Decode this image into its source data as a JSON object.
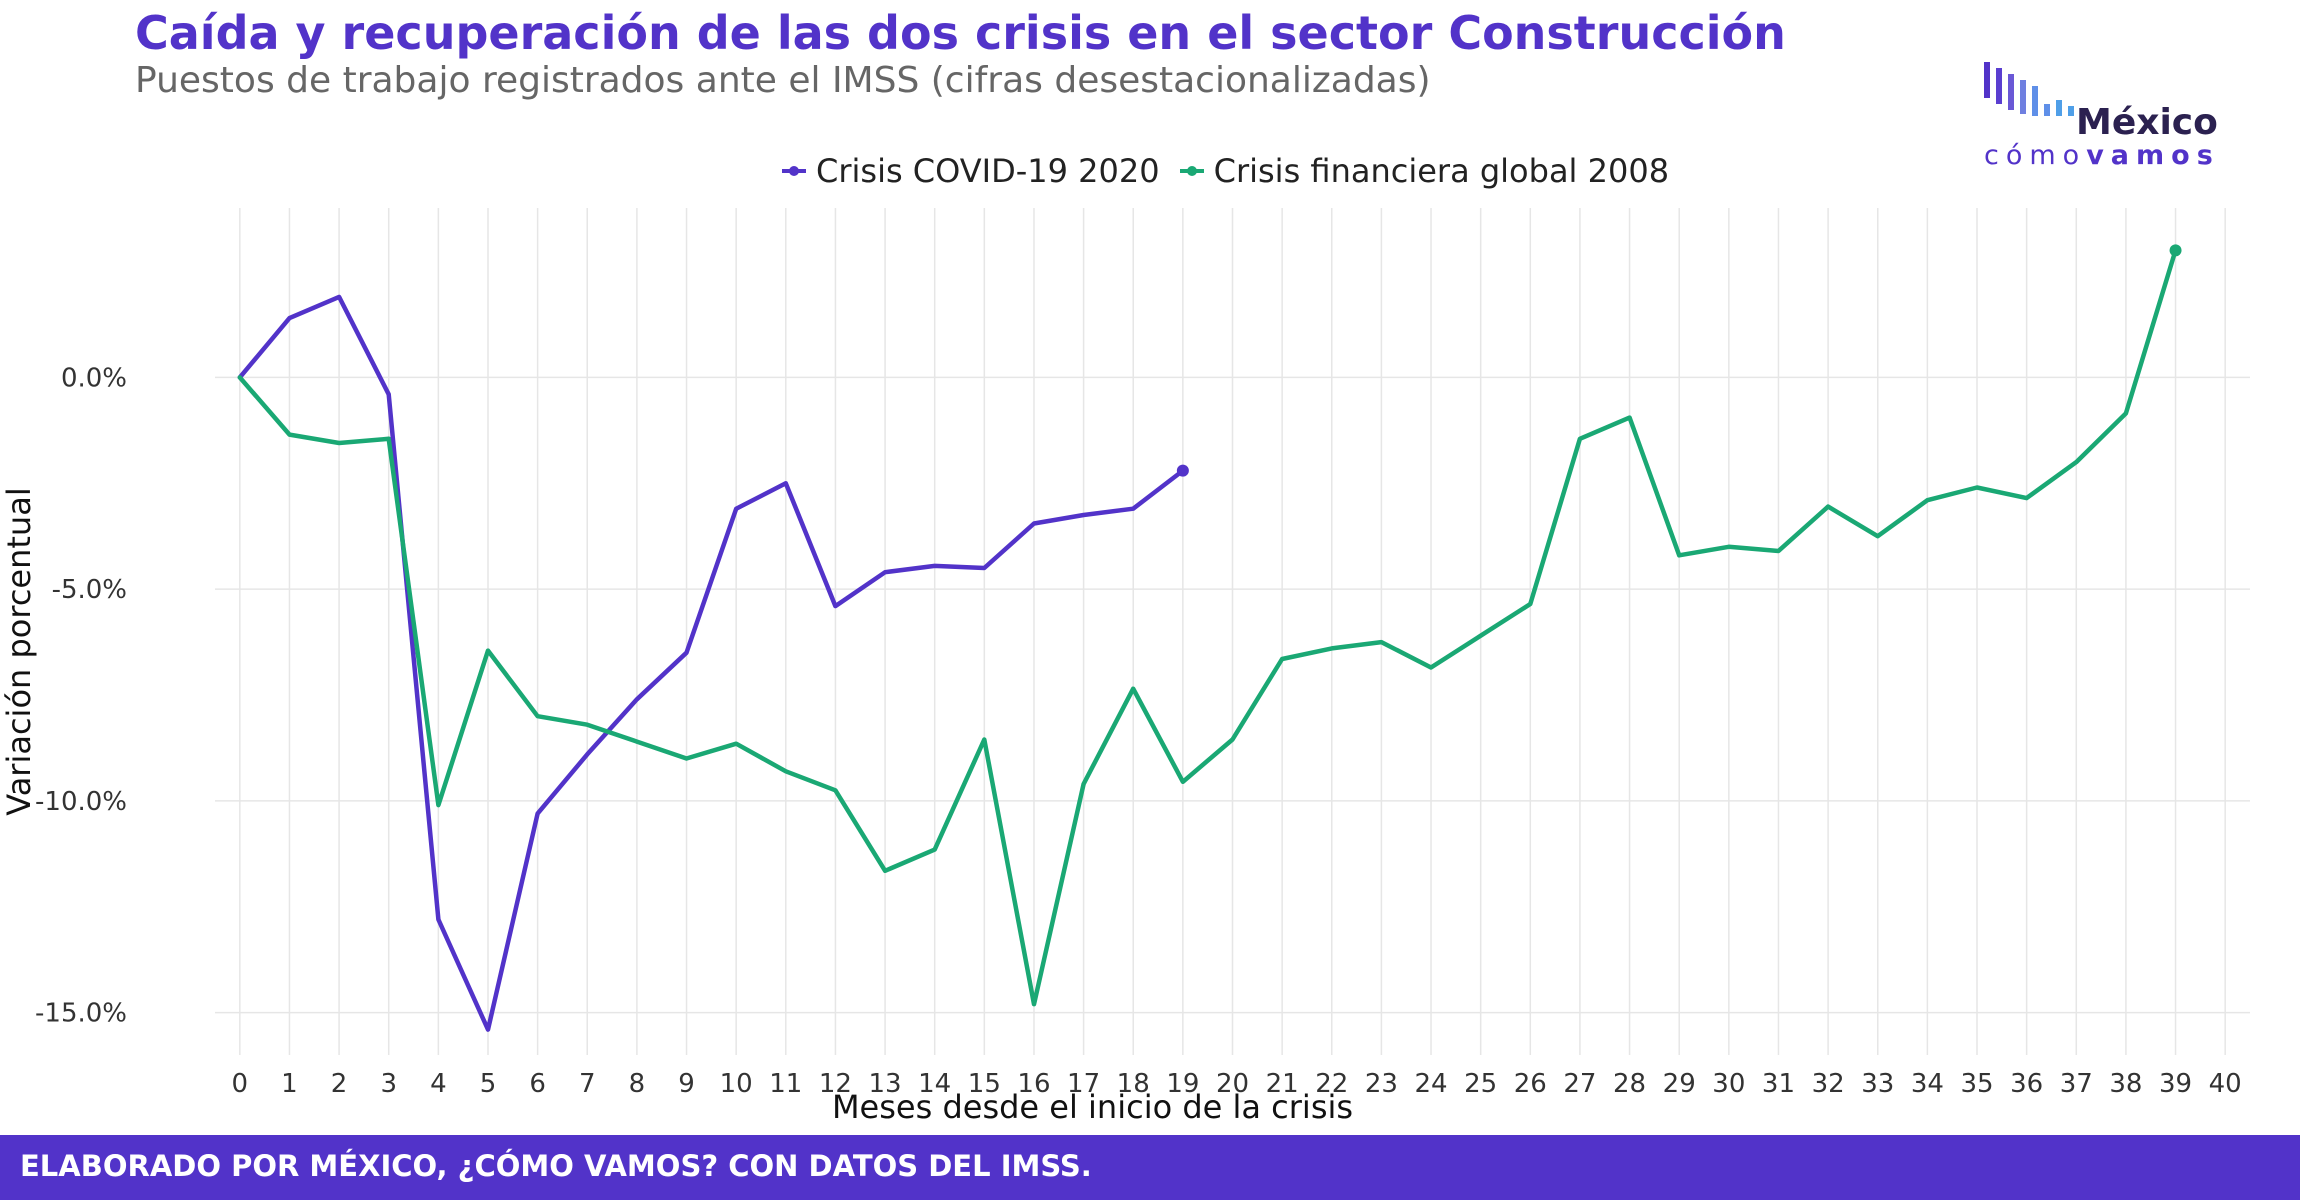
{
  "header": {
    "title": "Caída y recuperación de las dos crisis en el sector Construcción",
    "subtitle": "Puestos de trabajo registrados ante el IMSS (cifras desestacionalizadas)"
  },
  "logo": {
    "line1": "México",
    "line2a": "cómo",
    "line2b": "vamos"
  },
  "footer": {
    "text": "ELABORADO POR MÉXICO, ¿CÓMO VAMOS? CON DATOS DEL IMSS."
  },
  "colors": {
    "accent": "#5233c9",
    "covid": "#5233c9",
    "crisis2008": "#1aa874",
    "grid": "#e6e6e6"
  },
  "chart_data": {
    "type": "line",
    "xlabel": "Meses desde el inicio de la crisis",
    "ylabel": "Variación porcentual",
    "xlim": [
      -0.5,
      40.5
    ],
    "ylim": [
      -16,
      4
    ],
    "x_ticks": [
      0,
      1,
      2,
      3,
      4,
      5,
      6,
      7,
      8,
      9,
      10,
      11,
      12,
      13,
      14,
      15,
      16,
      17,
      18,
      19,
      20,
      21,
      22,
      23,
      24,
      25,
      26,
      27,
      28,
      29,
      30,
      31,
      32,
      33,
      34,
      35,
      36,
      37,
      38,
      39,
      40
    ],
    "y_ticks": [
      0,
      -5,
      -10,
      -15
    ],
    "y_tick_labels": [
      "0.0%",
      "-5.0%",
      "-10.0%",
      "-15.0%"
    ],
    "grid": true,
    "legend_position": "top",
    "series": [
      {
        "name": "Crisis COVID-19 2020",
        "color": "#5233c9",
        "x": [
          0,
          1,
          2,
          3,
          4,
          5,
          6,
          7,
          8,
          9,
          10,
          11,
          12,
          13,
          14,
          15,
          16,
          17,
          18,
          19
        ],
        "y": [
          0.0,
          1.4,
          1.9,
          -0.4,
          -12.8,
          -15.4,
          -10.3,
          -8.9,
          -7.6,
          -6.5,
          -3.1,
          -2.5,
          -5.4,
          -4.6,
          -4.45,
          -4.5,
          -3.45,
          -3.25,
          -3.1,
          -2.2
        ]
      },
      {
        "name": "Crisis financiera global 2008",
        "color": "#1aa874",
        "x": [
          0,
          1,
          2,
          3,
          4,
          5,
          6,
          7,
          8,
          9,
          10,
          11,
          12,
          13,
          14,
          15,
          16,
          17,
          18,
          19,
          20,
          21,
          22,
          23,
          24,
          25,
          26,
          27,
          28,
          29,
          30,
          31,
          32,
          33,
          34,
          35,
          36,
          37,
          38,
          39
        ],
        "y": [
          0.0,
          -1.35,
          -1.55,
          -1.45,
          -10.1,
          -6.45,
          -8.0,
          -8.2,
          -8.6,
          -9.0,
          -8.65,
          -9.3,
          -9.75,
          -11.65,
          -11.15,
          -8.55,
          -14.8,
          -9.6,
          -7.35,
          -9.55,
          -8.55,
          -6.65,
          -6.4,
          -6.25,
          -6.85,
          -6.1,
          -5.35,
          -1.45,
          -0.95,
          -4.2,
          -4.0,
          -4.1,
          -3.05,
          -3.75,
          -2.9,
          -2.6,
          -2.85,
          -2.0,
          -0.85,
          3.0
        ]
      }
    ]
  }
}
